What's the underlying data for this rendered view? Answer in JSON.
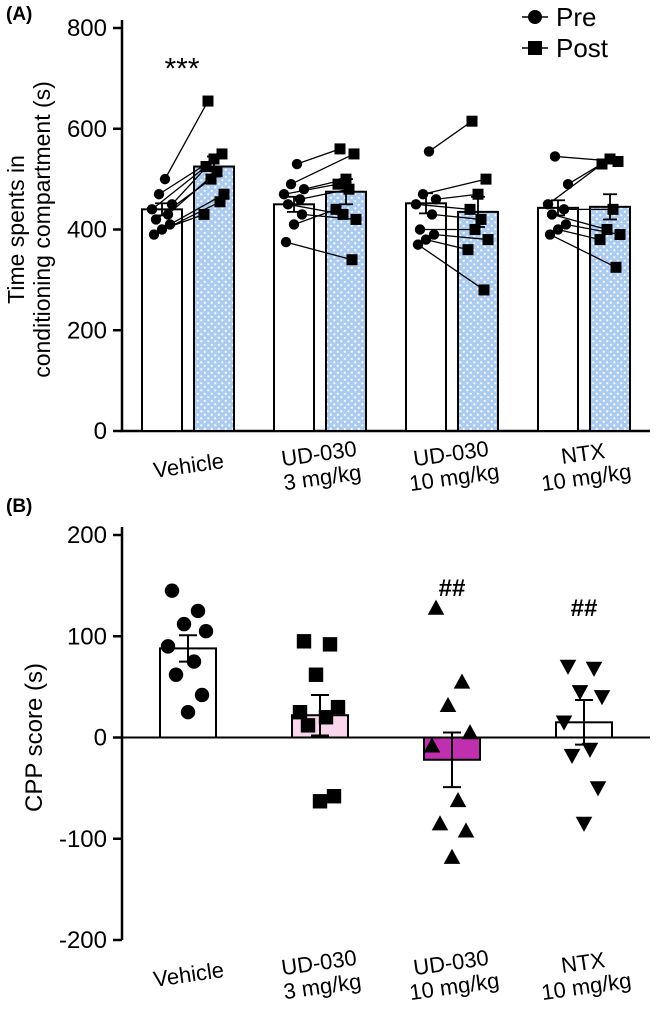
{
  "figure": {
    "panelA_label": "(A)",
    "panelB_label": "(B)"
  },
  "chart_data": [
    {
      "type": "bar",
      "panel": "A",
      "ylabel_lines": [
        "Time spents in",
        "conditioning compartment (s)"
      ],
      "ylim": [
        0,
        800
      ],
      "yticks": [
        0,
        200,
        400,
        600,
        800
      ],
      "legend": [
        {
          "label": "Pre",
          "marker": "circle"
        },
        {
          "label": "Post",
          "marker": "square"
        }
      ],
      "post_bar_color": "#accbf0",
      "significance": {
        "text": "***",
        "group": 0,
        "y": 700
      },
      "groups": [
        {
          "label_lines": [
            "Vehicle"
          ],
          "pre": {
            "mean": 440,
            "sem": 12
          },
          "post": {
            "mean": 525,
            "sem": 20
          },
          "pairs": [
            [
              390,
              455
            ],
            [
              400,
              430
            ],
            [
              410,
              470
            ],
            [
              420,
              500
            ],
            [
              430,
              515
            ],
            [
              440,
              525
            ],
            [
              450,
              540
            ],
            [
              470,
              550
            ],
            [
              500,
              655
            ]
          ]
        },
        {
          "label_lines": [
            "UD-030",
            "3 mg/kg"
          ],
          "pre": {
            "mean": 450,
            "sem": 15
          },
          "post": {
            "mean": 475,
            "sem": 25
          },
          "pairs": [
            [
              375,
              340
            ],
            [
              410,
              440
            ],
            [
              430,
              420
            ],
            [
              450,
              430
            ],
            [
              460,
              480
            ],
            [
              470,
              490
            ],
            [
              480,
              500
            ],
            [
              490,
              550
            ],
            [
              530,
              560
            ]
          ]
        },
        {
          "label_lines": [
            "UD-030",
            "10 mg/kg"
          ],
          "pre": {
            "mean": 452,
            "sem": 20
          },
          "post": {
            "mean": 435,
            "sem": 30
          },
          "pairs": [
            [
              370,
              280
            ],
            [
              380,
              360
            ],
            [
              390,
              380
            ],
            [
              400,
              400
            ],
            [
              430,
              420
            ],
            [
              450,
              440
            ],
            [
              460,
              470
            ],
            [
              470,
              500
            ],
            [
              555,
              615
            ]
          ]
        },
        {
          "label_lines": [
            "NTX",
            "10 mg/kg"
          ],
          "pre": {
            "mean": 443,
            "sem": 15
          },
          "post": {
            "mean": 445,
            "sem": 25
          },
          "pairs": [
            [
              390,
              325
            ],
            [
              400,
              380
            ],
            [
              410,
              390
            ],
            [
              430,
              400
            ],
            [
              440,
              440
            ],
            [
              450,
              530
            ],
            [
              490,
              540
            ],
            [
              545,
              535
            ]
          ]
        }
      ]
    },
    {
      "type": "bar",
      "panel": "B",
      "ylabel": "CPP score (s)",
      "ylim": [
        -200,
        200
      ],
      "yticks": [
        -200,
        -100,
        0,
        100,
        200
      ],
      "groups": [
        {
          "label_lines": [
            "Vehicle"
          ],
          "mean": 88,
          "sem": 13,
          "bar_color": "#ffffff",
          "marker": "circle",
          "sig": "",
          "sig_y": 0,
          "points": [
            145,
            125,
            112,
            105,
            90,
            75,
            62,
            42,
            25
          ]
        },
        {
          "label_lines": [
            "UD-030",
            "3 mg/kg"
          ],
          "mean": 22,
          "sem": 20,
          "bar_color": "#f9d6ec",
          "marker": "square",
          "sig": "",
          "sig_y": 0,
          "points": [
            95,
            92,
            62,
            30,
            25,
            20,
            12,
            -58,
            -63
          ]
        },
        {
          "label_lines": [
            "UD-030",
            "10 mg/kg"
          ],
          "mean": -22,
          "sem": 27,
          "bar_color": "#bf2fae",
          "marker": "triangle-up",
          "sig": "##",
          "sig_y": 140,
          "points": [
            128,
            55,
            32,
            5,
            -8,
            -62,
            -85,
            -92,
            -118
          ]
        },
        {
          "label_lines": [
            "NTX",
            "10 mg/kg"
          ],
          "mean": 15,
          "sem": 22,
          "bar_color": "#ffffff",
          "marker": "triangle-down",
          "sig": "##",
          "sig_y": 120,
          "points": [
            70,
            68,
            45,
            40,
            15,
            -12,
            -18,
            -50,
            -85
          ]
        }
      ]
    }
  ]
}
